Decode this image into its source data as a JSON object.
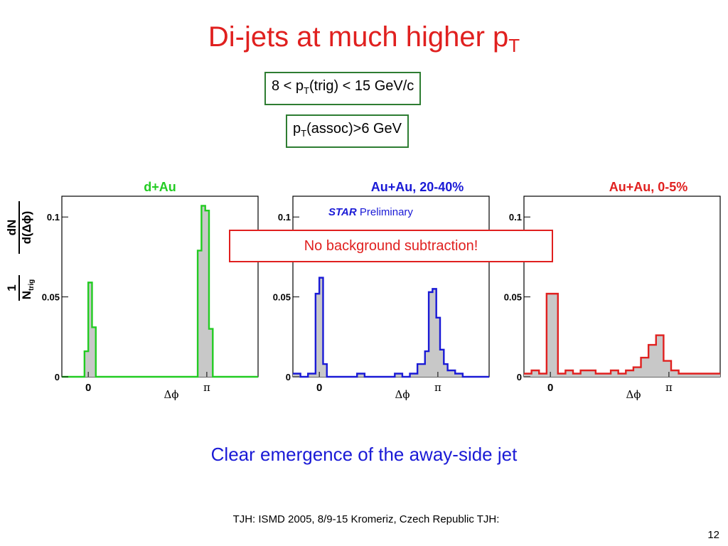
{
  "slide": {
    "title_main": "Di-jets at much higher p",
    "title_sub": "T",
    "title_color": "#e0201f",
    "cut_trig": {
      "prefix": "8 < p",
      "sub": "T",
      "suffix": "(trig) < 15 GeV/c"
    },
    "cut_assoc": {
      "prefix": "p",
      "sub": "T",
      "suffix": "(assoc)>6 GeV"
    },
    "preliminary": {
      "star": "STAR",
      "text": " Preliminary"
    },
    "no_background": "No background subtraction!",
    "caption": "Clear emergence of the away-side jet",
    "footer": "TJH: ISMD 2005, 8/9-15 Kromeriz, Czech Republic TJH:",
    "page_number": "12"
  },
  "chart_data": [
    {
      "type": "histogram",
      "title": "d+Au",
      "title_color": "#22cc22",
      "line_color": "#22cc22",
      "fill_color": "#c8c8c8",
      "ylabel": {
        "frac_num": "1",
        "frac_den": "N",
        "frac_den_sub": "trig",
        "deriv_num": "dN",
        "deriv_den": "d(Δϕ)"
      },
      "xlabel": "Δϕ",
      "x_ticks": [
        {
          "value": 0,
          "label": "0"
        },
        {
          "value": 3.1416,
          "label": "π"
        }
      ],
      "y_ticks": [
        {
          "value": 0,
          "label": "0"
        },
        {
          "value": 0.05,
          "label": "0.05"
        },
        {
          "value": 0.1,
          "label": "0.1"
        }
      ],
      "xlim": [
        -0.7,
        4.5
      ],
      "ylim": [
        0,
        0.113
      ],
      "bin_edges": [
        -0.7,
        -0.6,
        -0.5,
        -0.4,
        -0.3,
        -0.2,
        -0.1,
        0.0,
        0.1,
        0.2,
        0.3,
        0.4,
        0.5,
        0.6,
        0.7,
        0.8,
        0.9,
        1.0,
        1.1,
        1.2,
        1.3,
        1.4,
        1.5,
        1.6,
        1.7,
        1.8,
        1.9,
        2.0,
        2.1,
        2.2,
        2.3,
        2.4,
        2.5,
        2.6,
        2.7,
        2.8,
        2.9,
        3.0,
        3.1,
        3.2,
        3.3,
        3.4,
        3.5,
        3.6,
        3.7,
        3.8,
        3.9,
        4.0,
        4.1,
        4.2,
        4.3,
        4.4,
        4.5
      ],
      "values": [
        0,
        0,
        0,
        0,
        0,
        0,
        0.016,
        0.059,
        0.031,
        0,
        0,
        0,
        0,
        0,
        0,
        0,
        0,
        0,
        0,
        0,
        0,
        0,
        0,
        0,
        0,
        0,
        0,
        0,
        0,
        0,
        0,
        0,
        0,
        0,
        0,
        0,
        0.079,
        0.107,
        0.104,
        0.03,
        0,
        0,
        0,
        0,
        0,
        0,
        0,
        0,
        0,
        0,
        0,
        0
      ]
    },
    {
      "type": "histogram",
      "title": "Au+Au, 20-40%",
      "title_color": "#1a1ad6",
      "line_color": "#1a1ad6",
      "fill_color": "#c8c8c8",
      "xlabel": "Δϕ",
      "x_ticks": [
        {
          "value": 0,
          "label": "0"
        },
        {
          "value": 3.1416,
          "label": "π"
        }
      ],
      "y_ticks": [
        {
          "value": 0,
          "label": "0"
        },
        {
          "value": 0.05,
          "label": "0.05"
        },
        {
          "value": 0.1,
          "label": "0.1"
        }
      ],
      "xlim": [
        -0.7,
        4.5
      ],
      "ylim": [
        0,
        0.113
      ],
      "bin_edges": [
        -0.7,
        -0.5,
        -0.3,
        -0.1,
        0.0,
        0.1,
        0.2,
        0.4,
        0.6,
        0.8,
        1.0,
        1.2,
        1.4,
        1.6,
        1.8,
        2.0,
        2.2,
        2.4,
        2.6,
        2.8,
        2.9,
        3.0,
        3.1,
        3.2,
        3.3,
        3.4,
        3.6,
        3.8,
        4.0,
        4.2,
        4.5
      ],
      "values": [
        0.002,
        0,
        0.002,
        0.052,
        0.062,
        0.008,
        0,
        0,
        0,
        0,
        0.002,
        0,
        0,
        0,
        0,
        0.002,
        0,
        0.002,
        0.008,
        0.016,
        0.053,
        0.055,
        0.037,
        0.017,
        0.008,
        0.004,
        0.002,
        0,
        0,
        0
      ]
    },
    {
      "type": "histogram",
      "title": "Au+Au, 0-5%",
      "title_color": "#e0201f",
      "line_color": "#e0201f",
      "fill_color": "#c8c8c8",
      "xlabel": "Δϕ",
      "x_ticks": [
        {
          "value": 0,
          "label": "0"
        },
        {
          "value": 3.1416,
          "label": "π"
        }
      ],
      "y_ticks": [
        {
          "value": 0,
          "label": "0"
        },
        {
          "value": 0.05,
          "label": "0.05"
        },
        {
          "value": 0.1,
          "label": "0.1"
        }
      ],
      "xlim": [
        -0.7,
        4.5
      ],
      "ylim": [
        0,
        0.113
      ],
      "bin_edges": [
        -0.7,
        -0.5,
        -0.3,
        -0.1,
        0.2,
        0.4,
        0.6,
        0.8,
        1.0,
        1.2,
        1.4,
        1.6,
        1.8,
        2.0,
        2.2,
        2.4,
        2.6,
        2.8,
        3.0,
        3.2,
        3.4,
        3.6,
        3.8,
        4.0,
        4.2,
        4.5
      ],
      "values": [
        0.002,
        0.004,
        0.002,
        0.052,
        0.002,
        0.004,
        0.002,
        0.004,
        0.004,
        0.002,
        0.002,
        0.004,
        0.002,
        0.004,
        0.006,
        0.012,
        0.02,
        0.026,
        0.01,
        0.004,
        0.002,
        0.002,
        0.002,
        0.002,
        0.002
      ]
    }
  ]
}
